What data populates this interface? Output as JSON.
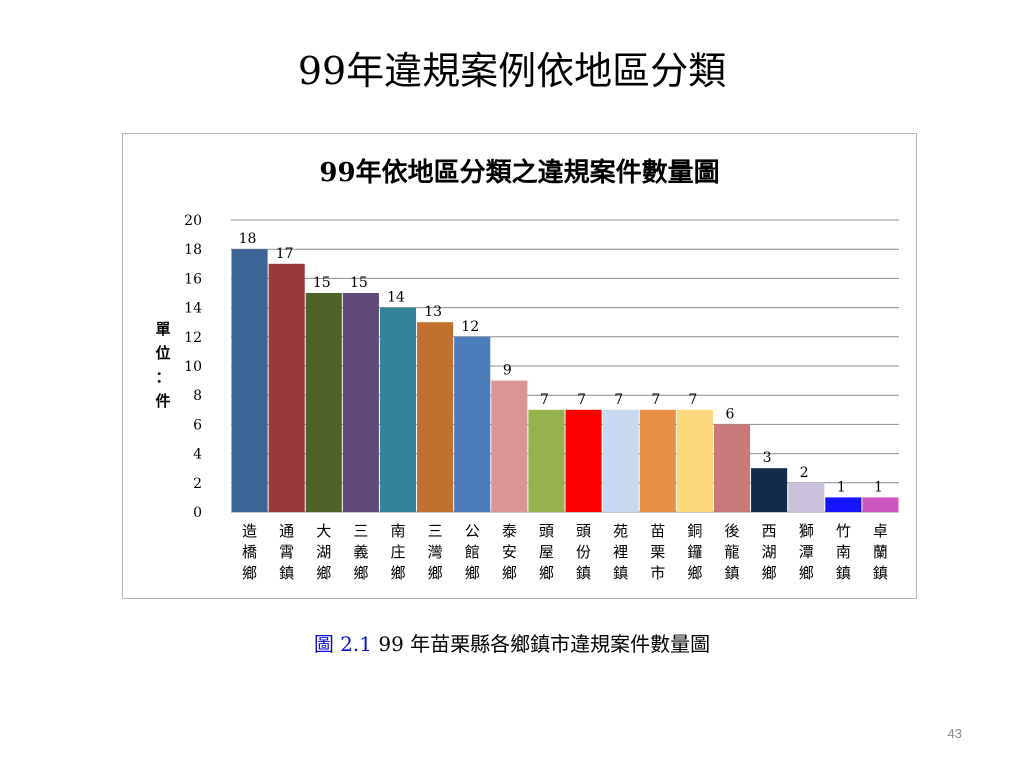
{
  "slide": {
    "title": "99年違規案例依地區分類",
    "caption_label": "圖  2.1",
    "caption_text": " 99 年苗栗縣各鄉鎮市違規案件數量圖",
    "page_number": "43"
  },
  "chart_data": {
    "type": "bar",
    "title": "99年依地區分類之違規案件數量圖",
    "xlabel": "",
    "ylabel": "單位：件",
    "ylim": [
      0,
      20
    ],
    "yticks": [
      0,
      2,
      4,
      6,
      8,
      10,
      12,
      14,
      16,
      18,
      20
    ],
    "grid": true,
    "legend": "none",
    "categories": [
      "造橋鄉",
      "通霄鎮",
      "大湖鄉",
      "三義鄉",
      "南庄鄉",
      "三灣鄉",
      "公館鄉",
      "泰安鄉",
      "頭屋鄉",
      "頭份鎮",
      "苑裡鎮",
      "苗栗市",
      "銅鑼鄉",
      "後龍鎮",
      "西湖鄉",
      "獅潭鄉",
      "竹南鎮",
      "卓蘭鎮"
    ],
    "values": [
      18,
      17,
      15,
      15,
      14,
      13,
      12,
      9,
      7,
      7,
      7,
      7,
      7,
      6,
      3,
      2,
      1,
      1
    ],
    "colors": [
      "#3d6496",
      "#973a3a",
      "#4f6228",
      "#604a7b",
      "#31849b",
      "#c0712f",
      "#4a7dba",
      "#d99694",
      "#95b24f",
      "#ff0000",
      "#c6d9f0",
      "#e78f44",
      "#fdd77c",
      "#c97977",
      "#132b4b",
      "#cbc0dc",
      "#1414ff",
      "#cc55bb"
    ]
  }
}
